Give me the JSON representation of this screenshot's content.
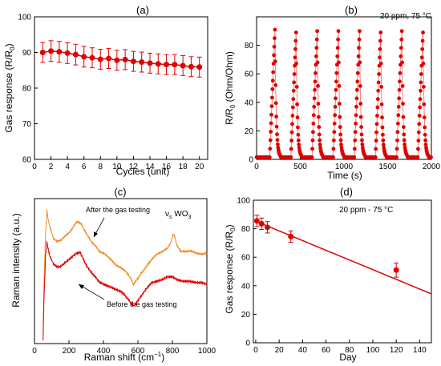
{
  "chart_data": [
    {
      "panel_label": "(a)",
      "type": "line",
      "xlabel": "Cycles (unit)",
      "ylabel": "Gas response (R/R",
      "ylabel_sub": "0",
      "xlim": [
        0,
        21
      ],
      "ylim": [
        60,
        100
      ],
      "xticks": [
        0,
        2,
        4,
        6,
        8,
        10,
        12,
        14,
        16,
        18,
        20
      ],
      "yticks": [
        60,
        70,
        80,
        90,
        100
      ],
      "series": [
        {
          "color": "#e00000",
          "marker": "circle",
          "x": [
            1,
            2,
            3,
            4,
            5,
            6,
            7,
            8,
            9,
            10,
            11,
            12,
            13,
            14,
            15,
            16,
            17,
            18,
            19,
            20
          ],
          "y": [
            90.0,
            90.4,
            90.2,
            89.8,
            89.4,
            88.8,
            88.5,
            88.1,
            88.3,
            87.8,
            88.0,
            87.5,
            87.3,
            87.0,
            86.8,
            86.6,
            86.6,
            86.3,
            86.0,
            85.9
          ],
          "error": [
            2.8,
            2.9,
            2.9,
            2.9,
            2.9,
            2.9,
            2.8,
            2.8,
            2.8,
            2.8,
            2.8,
            2.8,
            2.8,
            2.8,
            2.8,
            2.8,
            2.8,
            2.8,
            2.8,
            2.8
          ]
        }
      ]
    },
    {
      "panel_label": "(b)",
      "type": "line",
      "annotation": "20 ppm, 75 °C",
      "xlabel": "Time (s)",
      "ylabel": "R/R",
      "ylabel_sub": "0",
      "ylabel_tail": " (Ohm/Ohm)",
      "xlim": [
        0,
        2000
      ],
      "ylim": [
        0,
        100
      ],
      "xticks": [
        0,
        500,
        1000,
        1500,
        2000
      ],
      "yticks": [
        0,
        20,
        40,
        60,
        80
      ],
      "series": [
        {
          "color": "#e00000",
          "marker": "circle",
          "cycle_starts": [
            150,
            392,
            634,
            876,
            1118,
            1360,
            1602,
            1844
          ],
          "cycle_peaks": [
            91,
            89,
            90,
            90,
            90,
            89,
            90,
            89
          ],
          "baseline": 1.5
        }
      ]
    },
    {
      "panel_label": "(c)",
      "type": "line",
      "xlabel": "Raman shift (cm",
      "xlabel_sup": "−1",
      "xlabel_tail": ")",
      "ylabel": "Raman intensity (a.u.)",
      "xlim": [
        0,
        1000
      ],
      "ylim": [
        0,
        100
      ],
      "xticks": [
        0,
        200,
        400,
        600,
        800,
        1000
      ],
      "annotations": [
        "After the gas testing",
        "Before the gas testing",
        "ν",
        "s",
        " WO",
        "3"
      ],
      "series": [
        {
          "color": "#f08c1e",
          "x": [
            50,
            55,
            65,
            72,
            80,
            90,
            110,
            130,
            150,
            180,
            210,
            240,
            265,
            280,
            300,
            330,
            360,
            380,
            400,
            420,
            440,
            460,
            480,
            500,
            520,
            540,
            560,
            575,
            590,
            620,
            650,
            680,
            710,
            740,
            770,
            790,
            805,
            815,
            830,
            850,
            880,
            910,
            940,
            970,
            1000
          ],
          "y": [
            5,
            40,
            78,
            92,
            85,
            80,
            72,
            70,
            71,
            75,
            78,
            83,
            84,
            80,
            76,
            71,
            67,
            63,
            62,
            60,
            58,
            56,
            54,
            53,
            51,
            48,
            44,
            41,
            43,
            49,
            54,
            58,
            61,
            63,
            66,
            70,
            75,
            73,
            67,
            63,
            63,
            64,
            63,
            62,
            62
          ]
        },
        {
          "color": "#e00000",
          "x": [
            50,
            55,
            65,
            72,
            80,
            90,
            110,
            130,
            150,
            180,
            210,
            240,
            265,
            280,
            300,
            330,
            360,
            380,
            400,
            420,
            440,
            460,
            480,
            500,
            520,
            540,
            560,
            575,
            590,
            620,
            650,
            680,
            710,
            740,
            770,
            800,
            830,
            860,
            900,
            940,
            970,
            1000
          ],
          "y": [
            2,
            30,
            62,
            70,
            65,
            60,
            55,
            53,
            53,
            56,
            59,
            62,
            63,
            59,
            54,
            49,
            45,
            42,
            41,
            40,
            39,
            38,
            37,
            36,
            34,
            31,
            28,
            26,
            28,
            33,
            38,
            42,
            43,
            44,
            46,
            46,
            44,
            43,
            43,
            42,
            42,
            41
          ]
        }
      ]
    },
    {
      "panel_label": "(d)",
      "type": "scatter",
      "annotation": "20 ppm - 75 °C",
      "xlabel": "Day",
      "ylabel": "Gas response (R/R",
      "ylabel_sub": "0",
      "xlim": [
        -2,
        150
      ],
      "ylim": [
        0,
        100
      ],
      "xticks": [
        0,
        20,
        40,
        60,
        80,
        100,
        120,
        140
      ],
      "yticks": [
        0,
        20,
        40,
        60,
        80,
        100
      ],
      "series": [
        {
          "color": "#e00000",
          "marker": "circle",
          "x": [
            1,
            5,
            10,
            30,
            120
          ],
          "y": [
            85.5,
            83.5,
            81.0,
            74.5,
            51.0
          ],
          "error": [
            4.0,
            4.0,
            4.0,
            4.0,
            5.0
          ]
        }
      ],
      "fit_line": {
        "color": "#e00000",
        "x": [
          0,
          150
        ],
        "y": [
          85.3,
          34.3
        ]
      }
    }
  ]
}
